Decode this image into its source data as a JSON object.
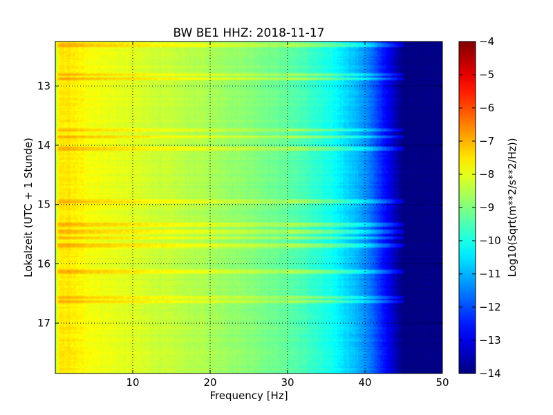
{
  "chart_data": {
    "type": "heatmap",
    "title": "BW BE1 HHZ: 2018-11-17",
    "xlabel": "Frequency [Hz]",
    "ylabel": "Lokalzeit (UTC + 1 Stunde)",
    "xlim": [
      0,
      50
    ],
    "ylim": [
      12.25,
      17.85
    ],
    "y_inverted": true,
    "x_ticks": [
      "10",
      "20",
      "30",
      "40",
      "50"
    ],
    "x_tick_values": [
      10,
      20,
      30,
      40,
      50
    ],
    "y_ticks": [
      "13",
      "14",
      "15",
      "16",
      "17"
    ],
    "y_tick_values": [
      13,
      14,
      15,
      16,
      17
    ],
    "grid": true,
    "colormap": "jet",
    "colorbar": {
      "label": "Log10(Sqrt(m**2/s**2/Hz))",
      "range": [
        -14,
        -4
      ],
      "ticks": [
        "−4",
        "−5",
        "−6",
        "−7",
        "−8",
        "−9",
        "−10",
        "−11",
        "−12",
        "−13",
        "−14"
      ],
      "tick_values": [
        -4,
        -5,
        -6,
        -7,
        -8,
        -9,
        -10,
        -11,
        -12,
        -13,
        -14
      ]
    },
    "frequency_profile": {
      "x": [
        0,
        0.5,
        1.5,
        3,
        6,
        10,
        15,
        20,
        25,
        30,
        33,
        36,
        38,
        40,
        42,
        43.5,
        45,
        50
      ],
      "values": [
        -8.6,
        -7.6,
        -7.5,
        -7.7,
        -7.9,
        -8.1,
        -8.35,
        -8.6,
        -8.9,
        -9.3,
        -9.7,
        -10.2,
        -10.7,
        -11.3,
        -12.3,
        -13.2,
        -14.0,
        -14.0
      ]
    },
    "bright_bands_hours": [
      12.3,
      12.8,
      12.87,
      13.73,
      13.85,
      14.05,
      14.93,
      15.33,
      15.45,
      15.55,
      15.68,
      16.12,
      16.55,
      16.62
    ]
  }
}
